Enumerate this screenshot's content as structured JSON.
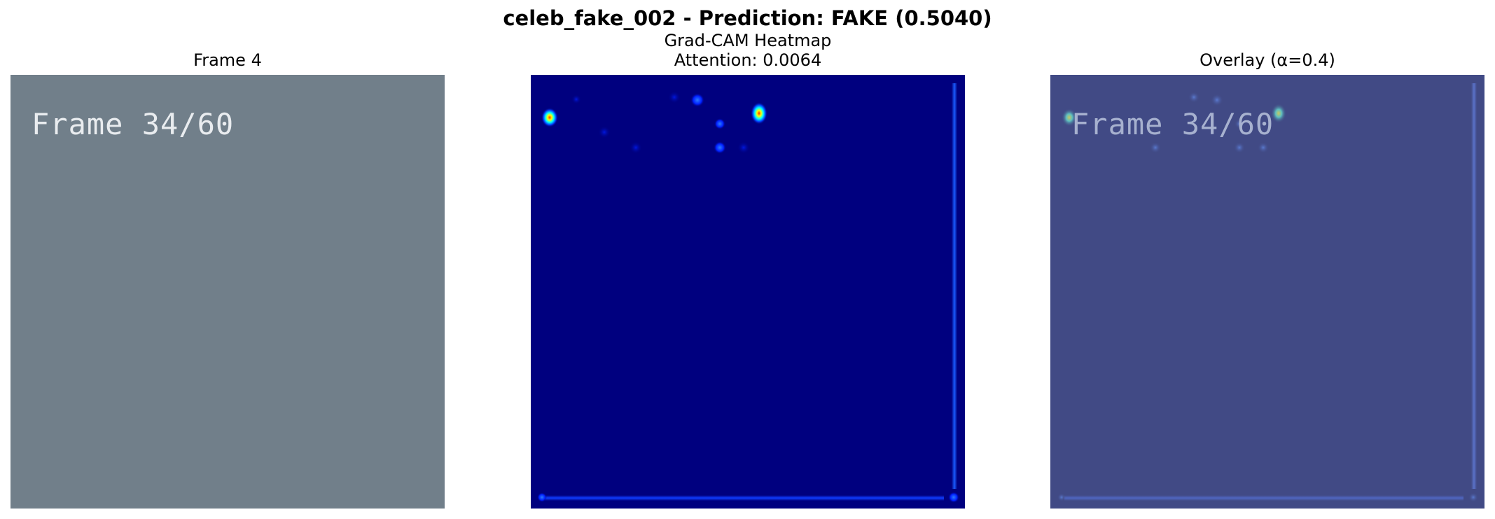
{
  "figure": {
    "title": "celeb_fake_002 - Prediction: FAKE (0.5040)"
  },
  "panels": {
    "frame": {
      "title": "Frame 4",
      "overlay_text": "Frame 34/60"
    },
    "heatmap": {
      "title_line1": "Grad-CAM Heatmap",
      "title_line2": "Attention: 0.0064"
    },
    "overlay": {
      "title": "Overlay (α=0.4)",
      "overlay_text": "Frame 34/60"
    }
  },
  "colors": {
    "frame_bg": "#717f8a",
    "frame_text": "#e9ecef",
    "heatmap_bg": "#00007f",
    "overlay_bg": "#414a85",
    "overlay_text": "#a7b1cf"
  }
}
